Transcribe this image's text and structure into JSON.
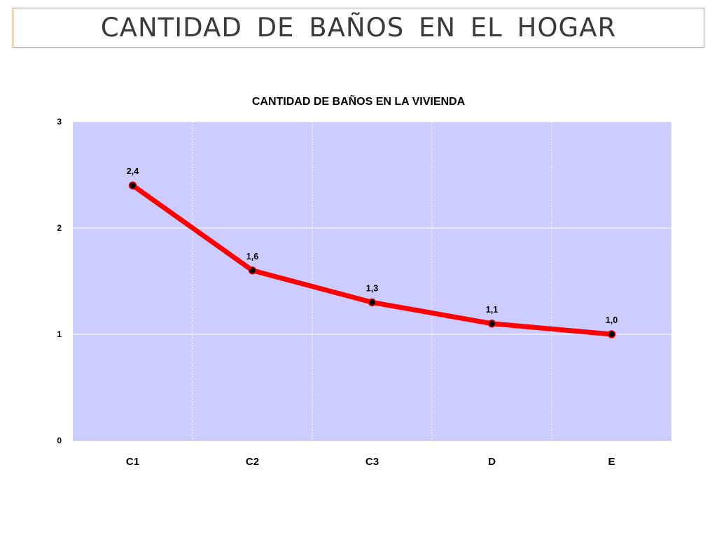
{
  "slide": {
    "title": "CANTIDAD  DE  BAÑOS  EN  EL  HOGAR"
  },
  "chart_data": {
    "type": "line",
    "title": "CANTIDAD DE BAÑOS EN LA VIVIENDA",
    "categories": [
      "C1",
      "C2",
      "C3",
      "D",
      "E"
    ],
    "series": [
      {
        "values": [
          2.4,
          1.6,
          1.3,
          1.1,
          1.0
        ],
        "labels": [
          "2,4",
          "1,6",
          "1,3",
          "1,1",
          "1,0"
        ],
        "color": "#ff0000",
        "marker_color": "#000000"
      }
    ],
    "xlabel": "",
    "ylabel": "",
    "ylim": [
      0,
      3
    ],
    "yticks": [
      "0",
      "1",
      "2",
      "3"
    ],
    "grid": true,
    "plot_background": "#ccccff",
    "legend": "none"
  }
}
